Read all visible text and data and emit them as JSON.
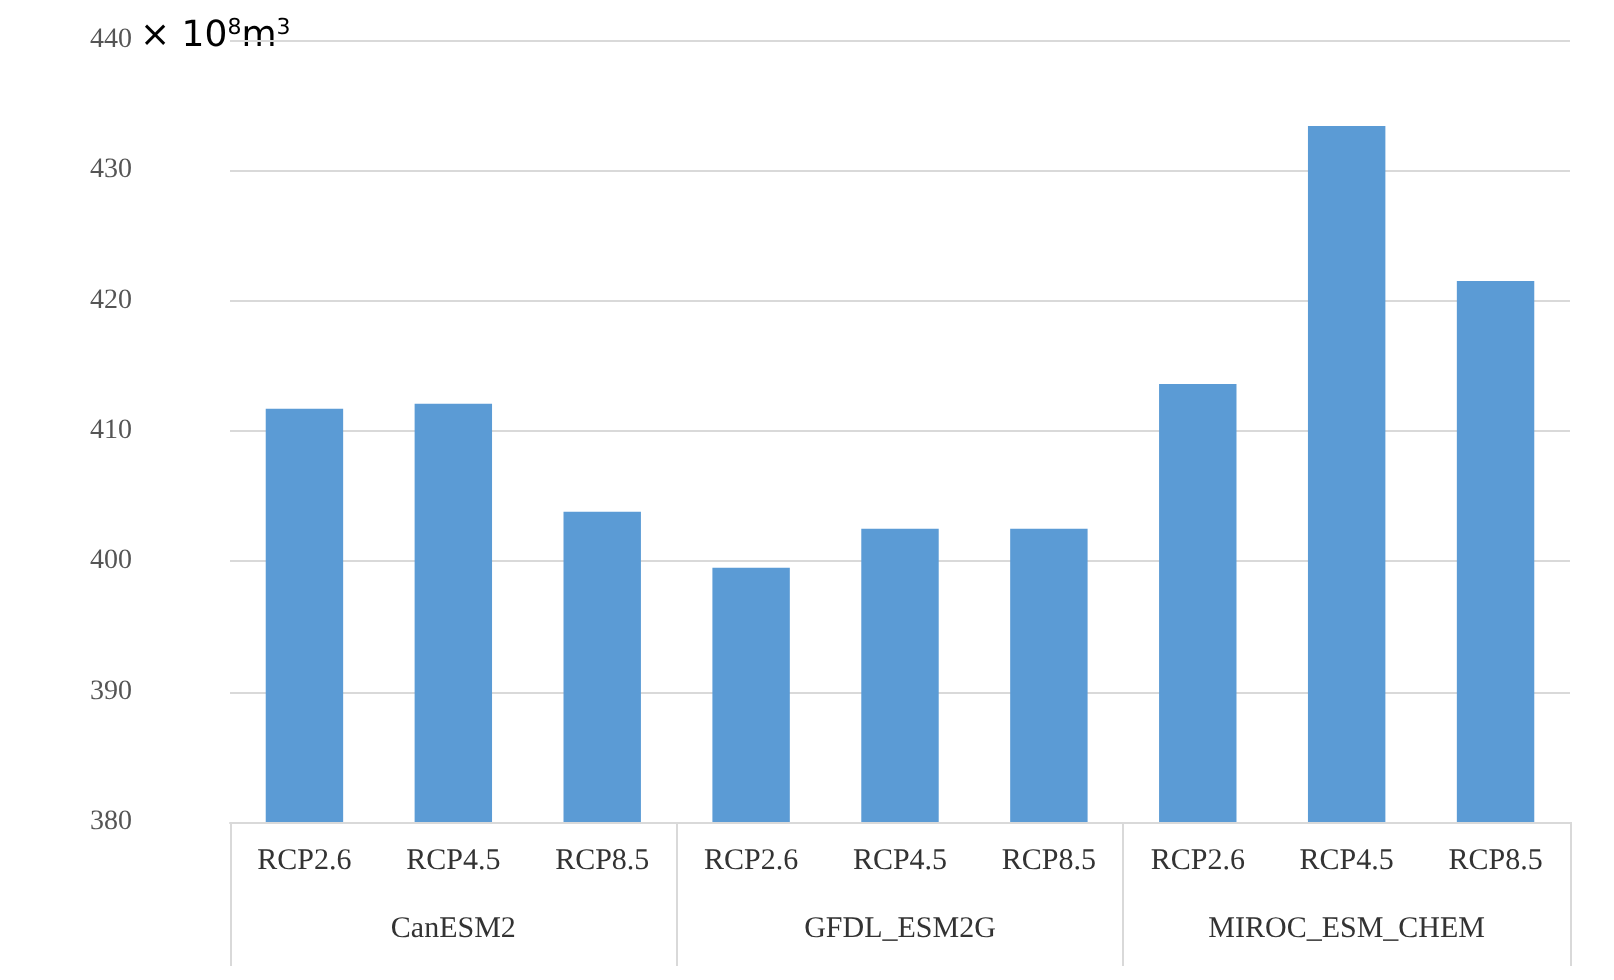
{
  "chart_data": {
    "type": "bar",
    "ylabel": "× 10$^{8}$m$^{3}$",
    "categories": [
      "RCP2.6",
      "RCP4.5",
      "RCP8.5",
      "RCP2.6",
      "RCP4.5",
      "RCP8.5",
      "RCP2.6",
      "RCP4.5",
      "RCP8.5"
    ],
    "values": [
      411.7,
      412.1,
      403.8,
      399.5,
      402.5,
      402.5,
      413.6,
      433.4,
      421.5
    ],
    "color": "#5b9bd5",
    "ylim": [
      380,
      440
    ],
    "yticks": [
      380,
      390,
      400,
      410,
      420,
      430,
      440
    ],
    "grid": "y",
    "annotations": [
      "CanESM2",
      "GFDL_ESM2G",
      "MIROC_ESM_CHEM"
    ]
  }
}
